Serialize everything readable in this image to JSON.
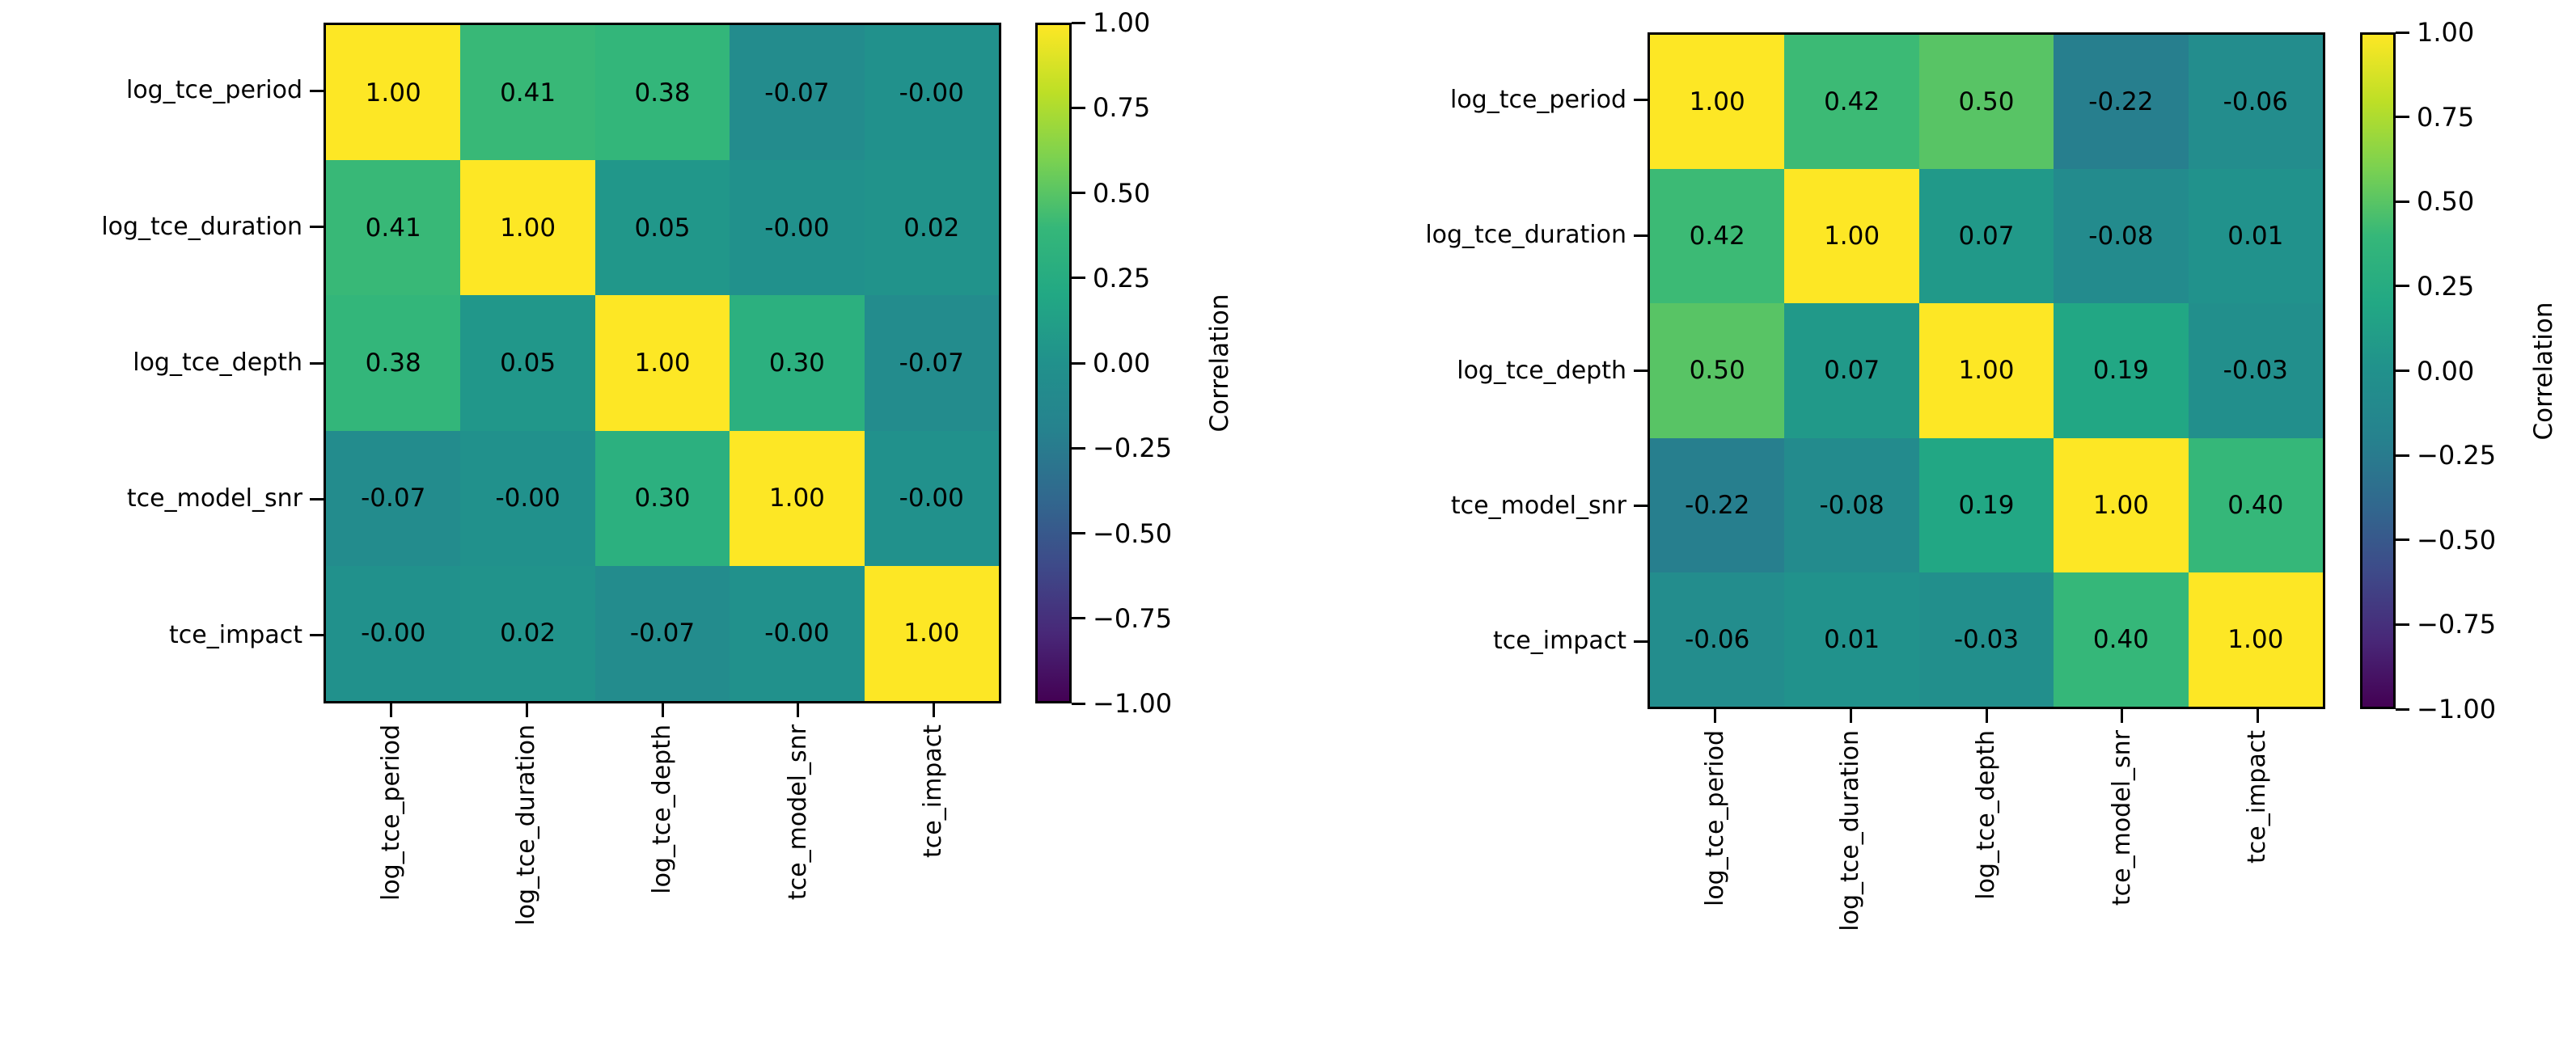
{
  "page": {
    "background": "#ffffff",
    "description": "Two correlation matrix heatmaps with viridis colorbars"
  },
  "colors": {
    "viridis_stops": [
      "#440154",
      "#482878",
      "#3e4a89",
      "#31688e",
      "#26828e",
      "#21918c",
      "#22a884",
      "#35b779",
      "#7ad151",
      "#bddf26",
      "#fde725"
    ],
    "axis_border": "#000000",
    "text": "#000000"
  },
  "chart_data": [
    {
      "type": "heatmap",
      "name": "left-correlation-heatmap",
      "labels": [
        "log_tce_period",
        "log_tce_duration",
        "log_tce_depth",
        "tce_model_snr",
        "tce_impact"
      ],
      "matrix": [
        [
          "1.00",
          "0.41",
          "0.38",
          "-0.07",
          "-0.00"
        ],
        [
          "0.41",
          "1.00",
          "0.05",
          "-0.00",
          "0.02"
        ],
        [
          "0.38",
          "0.05",
          "1.00",
          "0.30",
          "-0.07"
        ],
        [
          "-0.07",
          "-0.00",
          "0.30",
          "1.00",
          "-0.00"
        ],
        [
          "-0.00",
          "0.02",
          "-0.07",
          "-0.00",
          "1.00"
        ]
      ],
      "colormap": "viridis",
      "vmin": -1,
      "vmax": 1,
      "grid": false,
      "colorbar": {
        "label": "Correlation",
        "ticks": [
          "1.00",
          "0.75",
          "0.50",
          "0.25",
          "0.00",
          "−0.25",
          "−0.50",
          "−0.75",
          "−1.00"
        ]
      }
    },
    {
      "type": "heatmap",
      "name": "right-correlation-heatmap",
      "labels": [
        "log_tce_period",
        "log_tce_duration",
        "log_tce_depth",
        "tce_model_snr",
        "tce_impact"
      ],
      "matrix": [
        [
          "1.00",
          "0.42",
          "0.50",
          "-0.22",
          "-0.06"
        ],
        [
          "0.42",
          "1.00",
          "0.07",
          "-0.08",
          "0.01"
        ],
        [
          "0.50",
          "0.07",
          "1.00",
          "0.19",
          "-0.03"
        ],
        [
          "-0.22",
          "-0.08",
          "0.19",
          "1.00",
          "0.40"
        ],
        [
          "-0.06",
          "0.01",
          "-0.03",
          "0.40",
          "1.00"
        ]
      ],
      "colormap": "viridis",
      "vmin": -1,
      "vmax": 1,
      "grid": false,
      "colorbar": {
        "label": "Correlation",
        "ticks": [
          "1.00",
          "0.75",
          "0.50",
          "0.25",
          "0.00",
          "−0.25",
          "−0.50",
          "−0.75",
          "−1.00"
        ]
      }
    }
  ]
}
